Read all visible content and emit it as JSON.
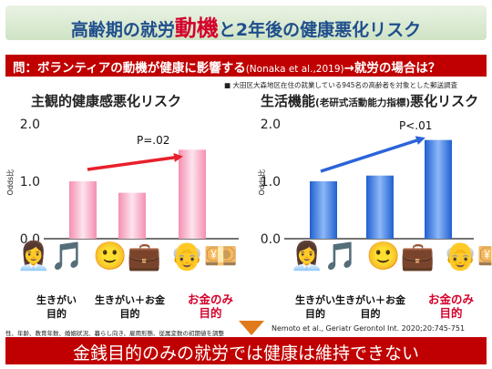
{
  "title": {
    "part1": "高齢期の就労",
    "highlight": "動機",
    "part2": "と2年後の健康悪化リスク"
  },
  "question": {
    "lead": "問：ボランティアの動機が健康に影響する",
    "cite": "(Nonaka et al.,2019)",
    "tail": "→就労の場合は？"
  },
  "note": "■ 大田区大森地区在住の就業している945名の高齢者を対象とした郵送調査",
  "chart_data": [
    {
      "type": "bar",
      "title": "主観的健康感悪化リスク",
      "ylabel": "Odds比",
      "ylim": [
        0,
        2
      ],
      "yticks": [
        "0.0",
        "1.0",
        "2.0"
      ],
      "categories": [
        "生きがい目的",
        "生きがい＋お金目的",
        "お金のみ目的"
      ],
      "values": [
        1.0,
        0.8,
        1.55
      ],
      "annotation": "P=.02",
      "bar_color": "#f6a8c2"
    },
    {
      "type": "bar",
      "title_main": "生活機能",
      "title_small": "(老研式活動能力指標)",
      "title_tail": "悪化リスク",
      "ylabel": "Odds比",
      "ylim": [
        0,
        2
      ],
      "yticks": [
        "0.0",
        "1.0",
        "2.0"
      ],
      "categories": [
        "生きがい目的",
        "生きがい＋お金目的",
        "お金のみ目的"
      ],
      "values": [
        1.0,
        1.1,
        1.72
      ],
      "annotation": "P<.01",
      "bar_color": "#3a78e0"
    }
  ],
  "categories": {
    "c1_line1": "生きがい",
    "c1_line2": "目的",
    "c2_line1": "生きがい＋お金",
    "c2_line2": "目的",
    "c3_line1": "お金のみ",
    "c3_line2": "目的"
  },
  "illustrations": {
    "left": "👩‍💼🎵  🙂💼  👴💴",
    "right": "👩‍💼🎵  🙂💼  👴💴"
  },
  "footnote": "性、年齢、教育年数、婚姻状況、暮らし向き、雇用形態、従属変数の初期値を調整",
  "reference": "Nemoto et al., Geriatr Gerontol Int. 2020;20:745-751",
  "conclusion": "金銭目的のみの就労では健康は維持できない",
  "colors": {
    "accent": "#c00000",
    "title": "#1f4e8c",
    "arrow_red": "#e8202a",
    "arrow_blue": "#2b64d8"
  }
}
